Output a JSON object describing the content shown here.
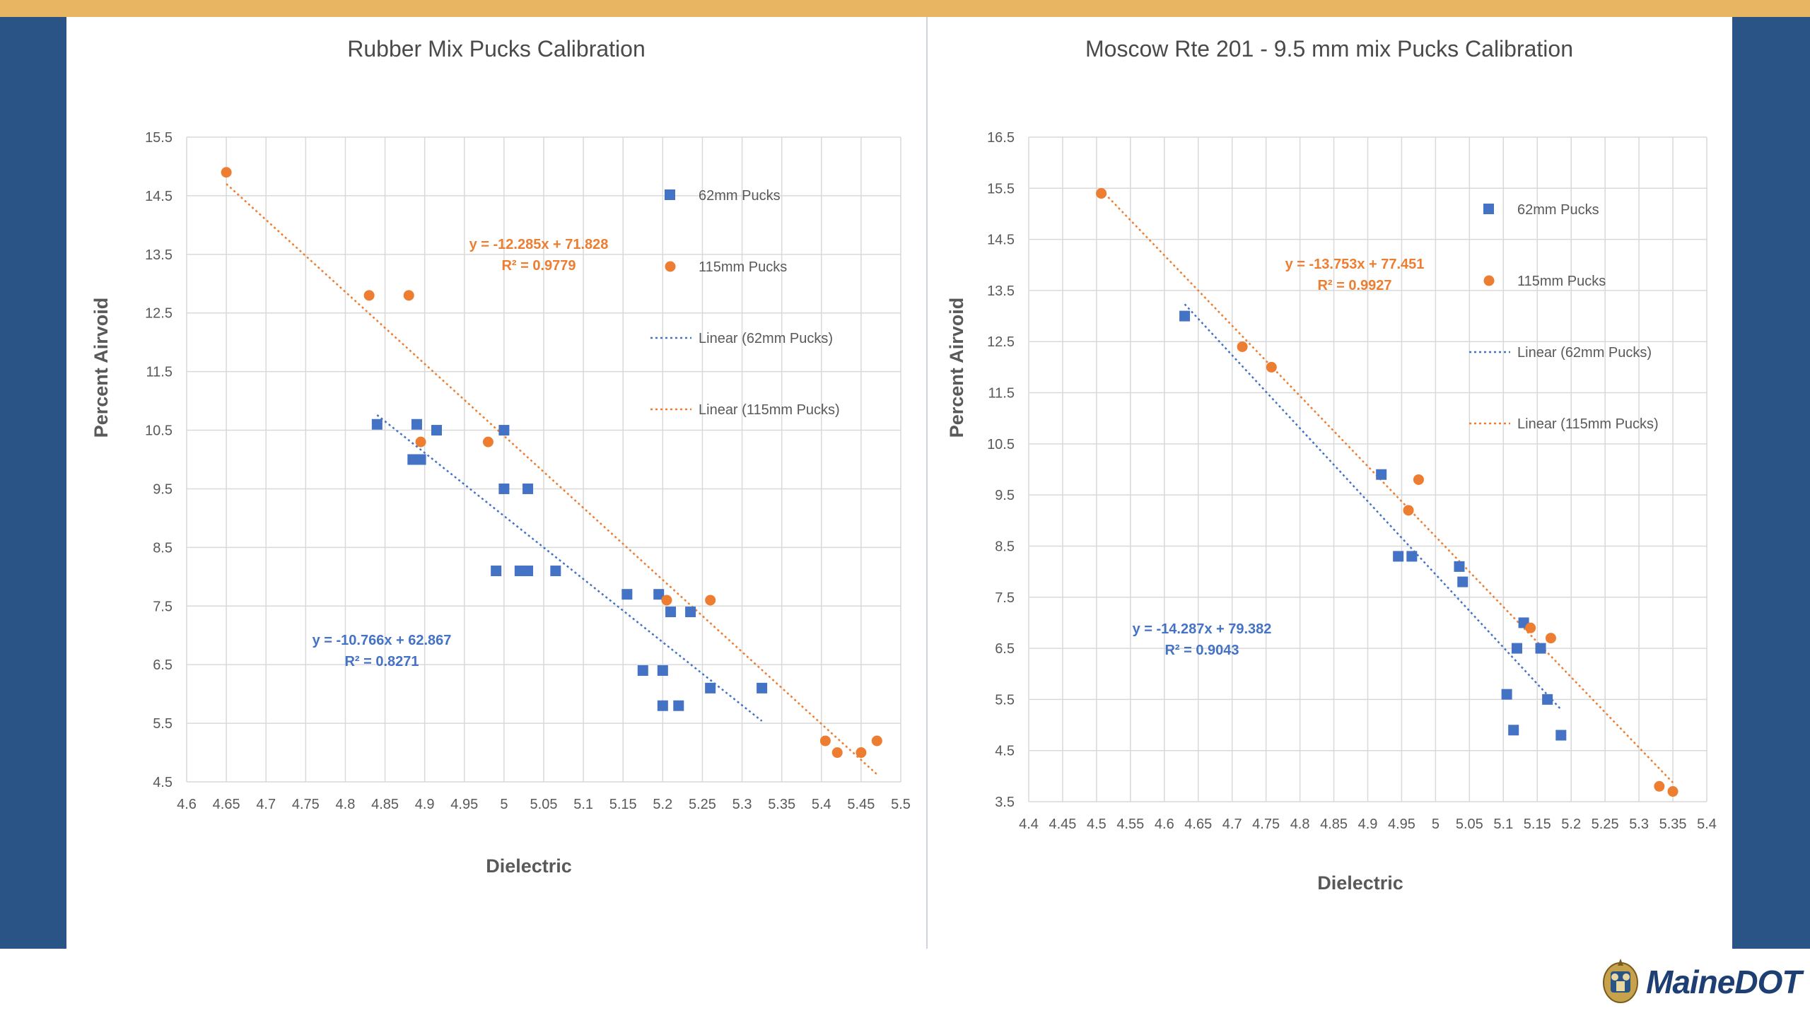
{
  "brand": {
    "logo_text": "MaineDOT"
  },
  "colors": {
    "top_bar": "#e8b563",
    "side_band": "#2b5486",
    "series_62": "#4472c4",
    "series_115": "#ed7d31"
  },
  "chart_data": [
    {
      "type": "scatter",
      "title": "Rubber Mix Pucks Calibration",
      "xlabel": "Dielectric",
      "ylabel": "Percent Airvoid",
      "xlim": [
        4.6,
        5.5
      ],
      "ylim": [
        4.5,
        15.5
      ],
      "x_ticks": [
        4.6,
        4.65,
        4.7,
        4.75,
        4.8,
        4.85,
        4.9,
        4.95,
        5,
        5.05,
        5.1,
        5.15,
        5.2,
        5.25,
        5.3,
        5.35,
        5.4,
        5.45,
        5.5
      ],
      "y_ticks": [
        4.5,
        5.5,
        6.5,
        7.5,
        8.5,
        9.5,
        10.5,
        11.5,
        12.5,
        13.5,
        14.5,
        15.5
      ],
      "grid": true,
      "legend_position": "right",
      "series": [
        {
          "name": "62mm Pucks",
          "marker": "square",
          "color": "#4472c4",
          "points": [
            [
              4.84,
              10.6
            ],
            [
              4.89,
              10.6
            ],
            [
              4.915,
              10.5
            ],
            [
              5.0,
              10.5
            ],
            [
              4.885,
              10.0
            ],
            [
              4.895,
              10.0
            ],
            [
              5.0,
              9.5
            ],
            [
              5.03,
              9.5
            ],
            [
              4.99,
              8.1
            ],
            [
              5.02,
              8.1
            ],
            [
              5.03,
              8.1
            ],
            [
              5.065,
              8.1
            ],
            [
              5.155,
              7.7
            ],
            [
              5.195,
              7.7
            ],
            [
              5.21,
              7.4
            ],
            [
              5.235,
              7.4
            ],
            [
              5.175,
              6.4
            ],
            [
              5.2,
              6.4
            ],
            [
              5.2,
              5.8
            ],
            [
              5.22,
              5.8
            ],
            [
              5.26,
              6.1
            ],
            [
              5.325,
              6.1
            ]
          ],
          "trendline": {
            "name": "Linear (62mm Pucks)",
            "slope": -10.766,
            "intercept": 62.867,
            "x_range": [
              4.84,
              5.325
            ],
            "equation": "y = -10.766x + 62.867",
            "r2": "R² = 0.8271"
          }
        },
        {
          "name": "115mm Pucks",
          "marker": "circle",
          "color": "#ed7d31",
          "points": [
            [
              4.65,
              14.9
            ],
            [
              4.83,
              12.8
            ],
            [
              4.88,
              12.8
            ],
            [
              4.895,
              10.3
            ],
            [
              4.98,
              10.3
            ],
            [
              5.205,
              7.6
            ],
            [
              5.26,
              7.6
            ],
            [
              5.405,
              5.2
            ],
            [
              5.42,
              5.0
            ],
            [
              5.45,
              5.0
            ],
            [
              5.47,
              5.2
            ]
          ],
          "trendline": {
            "name": "Linear (115mm Pucks)",
            "slope": -12.285,
            "intercept": 71.828,
            "x_range": [
              4.65,
              5.47
            ],
            "equation": "y = -12.285x + 71.828",
            "r2": "R² = 0.9779"
          }
        }
      ]
    },
    {
      "type": "scatter",
      "title": "Moscow Rte 201 - 9.5 mm mix Pucks Calibration",
      "xlabel": "Dielectric",
      "ylabel": "Percent Airvoid",
      "xlim": [
        4.4,
        5.4
      ],
      "ylim": [
        3.5,
        16.5
      ],
      "x_ticks": [
        4.4,
        4.45,
        4.5,
        4.55,
        4.6,
        4.65,
        4.7,
        4.75,
        4.8,
        4.85,
        4.9,
        4.95,
        5,
        5.05,
        5.1,
        5.15,
        5.2,
        5.25,
        5.3,
        5.35,
        5.4
      ],
      "y_ticks": [
        3.5,
        4.5,
        5.5,
        6.5,
        7.5,
        8.5,
        9.5,
        10.5,
        11.5,
        12.5,
        13.5,
        14.5,
        15.5,
        16.5
      ],
      "grid": true,
      "legend_position": "right",
      "series": [
        {
          "name": "62mm Pucks",
          "marker": "square",
          "color": "#4472c4",
          "points": [
            [
              4.63,
              13.0
            ],
            [
              4.92,
              9.9
            ],
            [
              4.945,
              8.3
            ],
            [
              4.965,
              8.3
            ],
            [
              5.035,
              8.1
            ],
            [
              5.04,
              7.8
            ],
            [
              5.13,
              7.0
            ],
            [
              5.12,
              6.5
            ],
            [
              5.155,
              6.5
            ],
            [
              5.105,
              5.6
            ],
            [
              5.165,
              5.5
            ],
            [
              5.115,
              4.9
            ],
            [
              5.185,
              4.8
            ]
          ],
          "trendline": {
            "name": "Linear (62mm Pucks)",
            "slope": -14.287,
            "intercept": 79.382,
            "x_range": [
              4.63,
              5.185
            ],
            "equation": "y = -14.287x + 79.382",
            "r2": "R² = 0.9043"
          }
        },
        {
          "name": "115mm Pucks",
          "marker": "circle",
          "color": "#ed7d31",
          "points": [
            [
              4.507,
              15.4
            ],
            [
              4.715,
              12.4
            ],
            [
              4.758,
              12.0
            ],
            [
              4.975,
              9.8
            ],
            [
              4.96,
              9.2
            ],
            [
              5.14,
              6.9
            ],
            [
              5.17,
              6.7
            ],
            [
              5.33,
              3.8
            ],
            [
              5.35,
              3.7
            ]
          ],
          "trendline": {
            "name": "Linear (115mm Pucks)",
            "slope": -13.753,
            "intercept": 77.451,
            "x_range": [
              4.507,
              5.35
            ],
            "equation": "y = -13.753x + 77.451",
            "r2": "R² = 0.9927"
          }
        }
      ]
    }
  ]
}
